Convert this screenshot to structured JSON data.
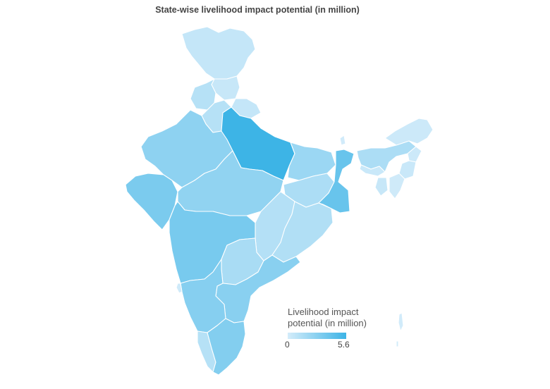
{
  "title": "State-wise livelihood impact potential (in million)",
  "legend": {
    "title_line1": "Livelihood impact",
    "title_line2": "potential (in million)",
    "min_label": "0",
    "max_label": "5.6"
  },
  "colors": {
    "low": "#d4ecfa",
    "high": "#3db4e6",
    "background": "#ffffff"
  },
  "chart_data": {
    "type": "choropleth",
    "title": "State-wise livelihood impact potential (in million)",
    "scale": {
      "min": 0,
      "max": 5.6
    },
    "regions": [
      {
        "id": "jammu-kashmir",
        "value": 0.6
      },
      {
        "id": "himachal-pradesh",
        "value": 0.5
      },
      {
        "id": "punjab",
        "value": 1.1
      },
      {
        "id": "uttarakhand",
        "value": 0.6
      },
      {
        "id": "haryana",
        "value": 1.1
      },
      {
        "id": "rajasthan",
        "value": 2.6
      },
      {
        "id": "uttar-pradesh",
        "value": 5.6
      },
      {
        "id": "bihar",
        "value": 2.1
      },
      {
        "id": "gujarat",
        "value": 3.3
      },
      {
        "id": "madhya-pradesh",
        "value": 2.5
      },
      {
        "id": "jharkhand",
        "value": 1.5
      },
      {
        "id": "west-bengal",
        "value": 4.0
      },
      {
        "id": "chhattisgarh",
        "value": 1.2
      },
      {
        "id": "odisha",
        "value": 1.3
      },
      {
        "id": "maharashtra",
        "value": 3.4
      },
      {
        "id": "telangana",
        "value": 1.6
      },
      {
        "id": "andhra-pradesh",
        "value": 2.8
      },
      {
        "id": "karnataka",
        "value": 2.9
      },
      {
        "id": "goa",
        "value": 0.2
      },
      {
        "id": "kerala",
        "value": 1.1
      },
      {
        "id": "tamil-nadu",
        "value": 3.0
      },
      {
        "id": "sikkim",
        "value": 0.1
      },
      {
        "id": "assam",
        "value": 1.5
      },
      {
        "id": "arunachal-pradesh",
        "value": 0.3
      },
      {
        "id": "meghalaya",
        "value": 0.4
      },
      {
        "id": "nagaland",
        "value": 0.3
      },
      {
        "id": "manipur",
        "value": 0.4
      },
      {
        "id": "mizoram",
        "value": 0.2
      },
      {
        "id": "tripura",
        "value": 0.5
      },
      {
        "id": "andaman-nicobar",
        "value": 0.1
      }
    ]
  }
}
